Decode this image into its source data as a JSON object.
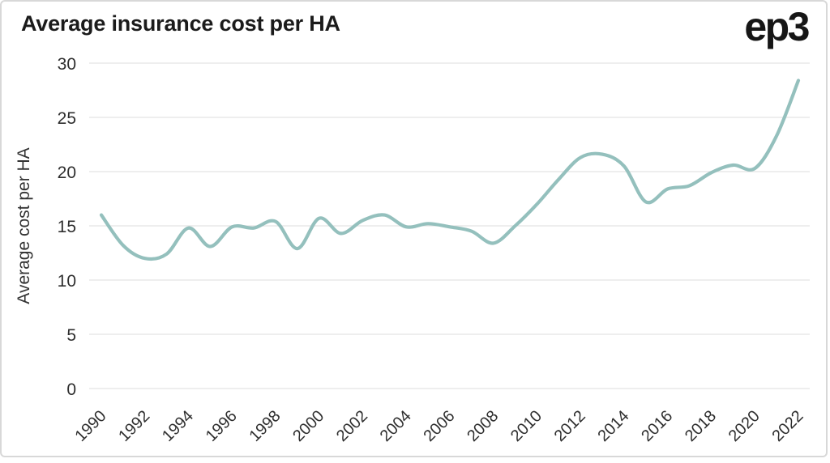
{
  "header": {
    "title": "Average insurance cost per HA",
    "logo_text": "ep3"
  },
  "chart_data": {
    "type": "line",
    "title": "Average insurance cost per HA",
    "xlabel": "",
    "ylabel": "Average cost per HA",
    "x": [
      1990,
      1991,
      1992,
      1993,
      1994,
      1995,
      1996,
      1997,
      1998,
      1999,
      2000,
      2001,
      2002,
      2003,
      2004,
      2005,
      2006,
      2007,
      2008,
      2009,
      2010,
      2011,
      2012,
      2013,
      2014,
      2015,
      2016,
      2017,
      2018,
      2019,
      2020,
      2021,
      2022
    ],
    "values": [
      16.0,
      13.2,
      12.0,
      12.4,
      14.8,
      13.1,
      14.9,
      14.8,
      15.4,
      12.9,
      15.7,
      14.3,
      15.5,
      16.0,
      14.9,
      15.2,
      14.9,
      14.5,
      13.4,
      15.0,
      17.0,
      19.3,
      21.3,
      21.6,
      20.5,
      17.2,
      18.4,
      18.7,
      19.9,
      20.6,
      20.3,
      23.3,
      28.4
    ],
    "series_name": "Average cost per HA",
    "ylim": [
      0,
      30
    ],
    "yticks": [
      0,
      5,
      10,
      15,
      20,
      25,
      30
    ],
    "xticks": [
      1990,
      1992,
      1994,
      1996,
      1998,
      2000,
      2002,
      2004,
      2006,
      2008,
      2010,
      2012,
      2014,
      2016,
      2018,
      2020,
      2022
    ],
    "xlim": [
      1990,
      2022
    ],
    "grid": "horizontal",
    "legend_position": "none",
    "line_color": "#94c0bd",
    "grid_color": "#e3e3e3",
    "text_color": "#2e2e2e"
  }
}
